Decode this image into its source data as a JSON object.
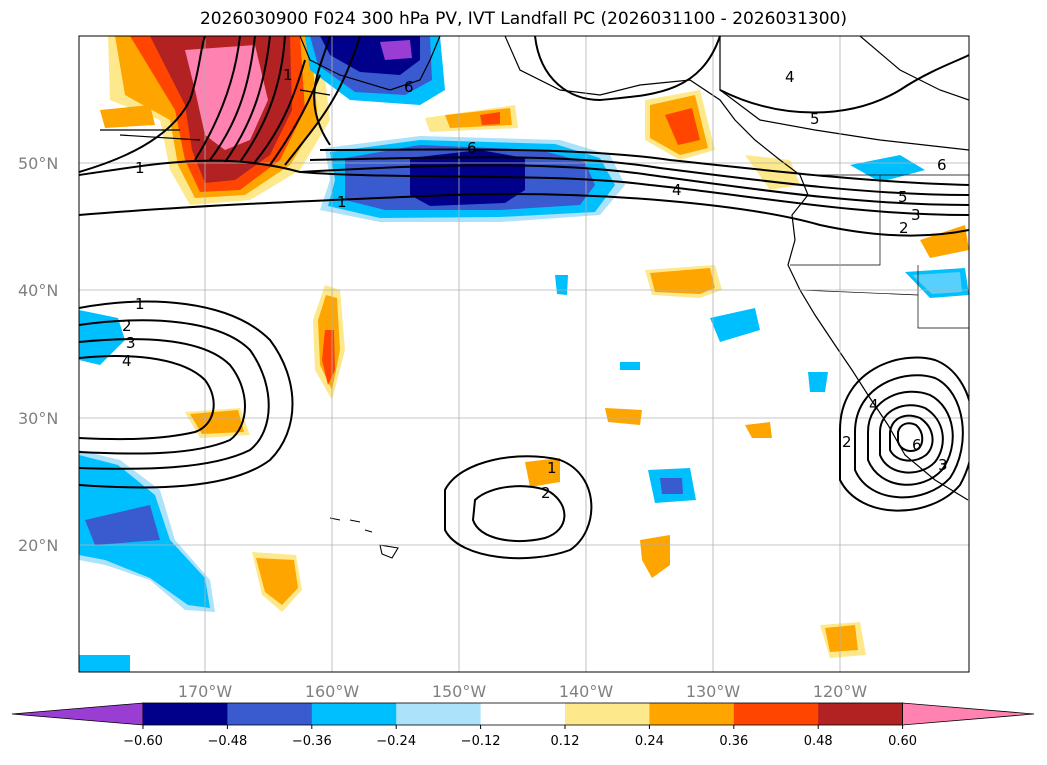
{
  "title": "2026030900 F024 300 hPa PV, IVT Landfall PC (2026031100 - 2026031300)",
  "lat_labels": [
    "50°N",
    "40°N",
    "30°N",
    "20°N"
  ],
  "lon_labels": [
    "170°W",
    "160°W",
    "150°W",
    "140°W",
    "130°W",
    "120°W"
  ],
  "colorbar": {
    "colors": [
      "#9a3dd3",
      "#00008b",
      "#3a5bd0",
      "#00bfff",
      "#ade2fb",
      "#ffffff",
      "#fde98c",
      "#ffa500",
      "#ff4500",
      "#b22222",
      "#ff82b0"
    ],
    "tick_labels": [
      "−0.60",
      "−0.48",
      "−0.36",
      "−0.24",
      "−0.12",
      "0.12",
      "0.24",
      "0.36",
      "0.48",
      "0.60"
    ]
  },
  "contour_labels": {
    "north_left": "1",
    "north_mid": "1",
    "north_top": "1",
    "north_6": "6",
    "north_6b": "6",
    "north_6c": "6",
    "north_4": "4",
    "north_4b": "4",
    "north_5": "5",
    "north_5b": "5",
    "north_3": "3",
    "north_2": "2",
    "west_1": "1",
    "west_2": "2",
    "west_3": "3",
    "west_4": "4",
    "central_1": "1",
    "central_2": "2",
    "east_2": "2",
    "east_3": "3",
    "east_4": "4",
    "east_6": "6"
  }
}
